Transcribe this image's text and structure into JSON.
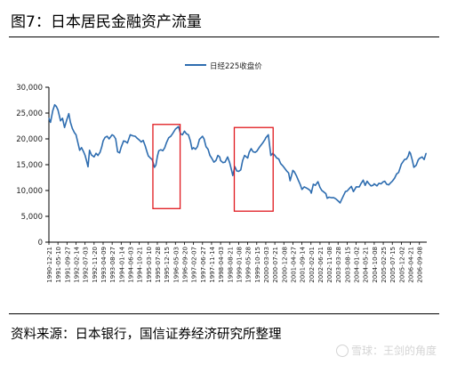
{
  "page": {
    "title": "图7：日本居民金融资产流量",
    "source": "资料来源：日本银行，国信证券经济研究所整理",
    "watermark": "雪球：王剑的角度"
  },
  "chart_data": {
    "type": "line",
    "title": "",
    "xlabel": "",
    "ylabel": "",
    "ylim": [
      0,
      30000
    ],
    "yticks": [
      0,
      5000,
      10000,
      15000,
      20000,
      25000,
      30000
    ],
    "ytick_labels": [
      "0",
      "5,000",
      "10,000",
      "15,000",
      "20,000",
      "25,000",
      "30,000"
    ],
    "xlim": [
      "1990-12-21",
      "2006-12-31"
    ],
    "xtick_labels": [
      "1990-12-21",
      "1991-05-10",
      "1991-09-27",
      "1992-02-14",
      "1992-07-03",
      "1992-11-20",
      "1993-04-09",
      "1993-08-27",
      "1994-01-14",
      "1994-06-03",
      "1994-10-21",
      "1995-03-10",
      "1995-07-28",
      "1995-12-15",
      "1996-05-03",
      "1996-09-20",
      "1997-02-07",
      "1997-06-27",
      "1997-11-14",
      "1998-04-03",
      "1998-08-21",
      "1999-01-08",
      "1999-05-28",
      "1999-10-15",
      "2000-03-03",
      "2000-07-21",
      "2000-12-08",
      "2001-04-27",
      "2001-09-14",
      "2002-02-01",
      "2002-06-21",
      "2002-11-08",
      "2003-03-28",
      "2003-08-15",
      "2004-01-02",
      "2004-05-21",
      "2004-10-08",
      "2005-02-25",
      "2005-07-15",
      "2005-12-02",
      "2006-04-21",
      "2006-09-08"
    ],
    "grid": false,
    "legend_position": "top-center",
    "series": [
      {
        "name": "日经225收盘价",
        "color": "#2e6db0",
        "points": [
          [
            "1990-12-21",
            24000
          ],
          [
            "1991-01-15",
            23200
          ],
          [
            "1991-02-20",
            25500
          ],
          [
            "1991-03-20",
            26600
          ],
          [
            "1991-04-15",
            26300
          ],
          [
            "1991-05-10",
            25600
          ],
          [
            "1991-06-20",
            23500
          ],
          [
            "1991-07-20",
            24000
          ],
          [
            "1991-08-20",
            22200
          ],
          [
            "1991-09-27",
            23800
          ],
          [
            "1991-10-25",
            24900
          ],
          [
            "1991-11-20",
            23200
          ],
          [
            "1991-12-20",
            22000
          ],
          [
            "1992-01-20",
            21200
          ],
          [
            "1992-02-14",
            20800
          ],
          [
            "1992-03-10",
            19500
          ],
          [
            "1992-04-10",
            17800
          ],
          [
            "1992-05-10",
            18300
          ],
          [
            "1992-06-10",
            17500
          ],
          [
            "1992-07-03",
            16800
          ],
          [
            "1992-07-25",
            15800
          ],
          [
            "1992-08-18",
            14600
          ],
          [
            "1992-09-10",
            17800
          ],
          [
            "1992-10-10",
            16900
          ],
          [
            "1992-11-20",
            16500
          ],
          [
            "1992-12-20",
            17200
          ],
          [
            "1993-01-20",
            16800
          ],
          [
            "1993-02-20",
            17400
          ],
          [
            "1993-03-20",
            18500
          ],
          [
            "1993-04-09",
            19600
          ],
          [
            "1993-05-10",
            20300
          ],
          [
            "1993-06-10",
            20500
          ],
          [
            "1993-07-10",
            20000
          ],
          [
            "1993-08-27",
            20800
          ],
          [
            "1993-09-20",
            20600
          ],
          [
            "1993-10-20",
            20000
          ],
          [
            "1993-11-20",
            17500
          ],
          [
            "1993-12-20",
            17300
          ],
          [
            "1994-01-14",
            18400
          ],
          [
            "1994-02-20",
            19600
          ],
          [
            "1994-03-20",
            19500
          ],
          [
            "1994-04-20",
            19200
          ],
          [
            "1994-06-03",
            20800
          ],
          [
            "1994-07-10",
            20600
          ],
          [
            "1994-08-20",
            20500
          ],
          [
            "1994-09-20",
            20100
          ],
          [
            "1994-10-21",
            19800
          ],
          [
            "1994-11-20",
            19400
          ],
          [
            "1994-12-20",
            19700
          ],
          [
            "1995-01-20",
            18700
          ],
          [
            "1995-02-20",
            17400
          ],
          [
            "1995-03-10",
            16700
          ],
          [
            "1995-04-10",
            16300
          ],
          [
            "1995-05-10",
            16000
          ],
          [
            "1995-06-13",
            14500
          ],
          [
            "1995-07-05",
            14900
          ],
          [
            "1995-07-28",
            16600
          ],
          [
            "1995-08-20",
            17700
          ],
          [
            "1995-09-20",
            17900
          ],
          [
            "1995-10-20",
            17700
          ],
          [
            "1995-11-20",
            18300
          ],
          [
            "1995-12-15",
            19200
          ],
          [
            "1996-01-20",
            20200
          ],
          [
            "1996-02-20",
            20500
          ],
          [
            "1996-03-20",
            21000
          ],
          [
            "1996-05-03",
            21900
          ],
          [
            "1996-06-20",
            22400
          ],
          [
            "1996-07-20",
            21000
          ],
          [
            "1996-08-20",
            20800
          ],
          [
            "1996-09-20",
            21500
          ],
          [
            "1996-10-20",
            21000
          ],
          [
            "1996-11-20",
            20800
          ],
          [
            "1996-12-20",
            19600
          ],
          [
            "1997-01-15",
            18000
          ],
          [
            "1997-02-07",
            18300
          ],
          [
            "1997-03-10",
            18000
          ],
          [
            "1997-04-10",
            18500
          ],
          [
            "1997-05-10",
            19900
          ],
          [
            "1997-06-27",
            20500
          ],
          [
            "1997-07-20",
            20000
          ],
          [
            "1997-08-20",
            18500
          ],
          [
            "1997-09-20",
            18000
          ],
          [
            "1997-10-20",
            16800
          ],
          [
            "1997-11-14",
            16300
          ],
          [
            "1997-12-20",
            15500
          ],
          [
            "1998-01-20",
            15800
          ],
          [
            "1998-02-20",
            16800
          ],
          [
            "1998-03-20",
            16500
          ],
          [
            "1998-04-03",
            15800
          ],
          [
            "1998-05-10",
            15400
          ],
          [
            "1998-06-10",
            15500
          ],
          [
            "1998-07-20",
            16500
          ],
          [
            "1998-08-21",
            15400
          ],
          [
            "1998-09-20",
            13900
          ],
          [
            "1998-10-09",
            12900
          ],
          [
            "1998-11-10",
            14600
          ],
          [
            "1998-12-10",
            13800
          ],
          [
            "1999-01-08",
            13700
          ],
          [
            "1999-02-10",
            14000
          ],
          [
            "1999-03-10",
            15800
          ],
          [
            "1999-04-10",
            16800
          ],
          [
            "1999-05-28",
            16300
          ],
          [
            "1999-06-20",
            17400
          ],
          [
            "1999-07-20",
            18100
          ],
          [
            "1999-08-20",
            17500
          ],
          [
            "1999-09-20",
            17400
          ],
          [
            "1999-10-15",
            17600
          ],
          [
            "1999-11-20",
            18300
          ],
          [
            "1999-12-20",
            18800
          ],
          [
            "2000-01-20",
            19300
          ],
          [
            "2000-02-20",
            19900
          ],
          [
            "2000-03-03",
            20200
          ],
          [
            "2000-04-12",
            20800
          ],
          [
            "2000-05-20",
            16800
          ],
          [
            "2000-06-20",
            17200
          ],
          [
            "2000-07-21",
            16800
          ],
          [
            "2000-08-20",
            16300
          ],
          [
            "2000-09-20",
            16100
          ],
          [
            "2000-10-20",
            15200
          ],
          [
            "2000-11-20",
            14800
          ],
          [
            "2000-12-08",
            14500
          ],
          [
            "2001-01-20",
            13800
          ],
          [
            "2001-02-20",
            13400
          ],
          [
            "2001-03-15",
            11900
          ],
          [
            "2001-04-27",
            13900
          ],
          [
            "2001-05-20",
            13600
          ],
          [
            "2001-06-20",
            12900
          ],
          [
            "2001-07-20",
            12000
          ],
          [
            "2001-08-20",
            11100
          ],
          [
            "2001-09-14",
            10200
          ],
          [
            "2001-10-20",
            10700
          ],
          [
            "2001-11-20",
            10500
          ],
          [
            "2001-12-20",
            10300
          ],
          [
            "2002-01-20",
            10000
          ],
          [
            "2002-02-06",
            9500
          ],
          [
            "2002-03-10",
            11200
          ],
          [
            "2002-04-10",
            11000
          ],
          [
            "2002-05-20",
            11700
          ],
          [
            "2002-06-21",
            10600
          ],
          [
            "2002-07-20",
            10000
          ],
          [
            "2002-08-20",
            9700
          ],
          [
            "2002-09-20",
            9400
          ],
          [
            "2002-10-10",
            8500
          ],
          [
            "2002-11-08",
            8700
          ],
          [
            "2002-12-20",
            8600
          ],
          [
            "2003-01-20",
            8600
          ],
          [
            "2003-02-20",
            8400
          ],
          [
            "2003-03-28",
            8000
          ],
          [
            "2003-04-28",
            7600
          ],
          [
            "2003-05-20",
            8200
          ],
          [
            "2003-06-20",
            9000
          ],
          [
            "2003-07-20",
            9800
          ],
          [
            "2003-08-15",
            9900
          ],
          [
            "2003-09-20",
            10400
          ],
          [
            "2003-10-20",
            10800
          ],
          [
            "2003-11-20",
            9800
          ],
          [
            "2003-12-20",
            10400
          ],
          [
            "2004-01-02",
            10700
          ],
          [
            "2004-02-20",
            10700
          ],
          [
            "2004-03-20",
            11400
          ],
          [
            "2004-04-20",
            12000
          ],
          [
            "2004-05-21",
            11000
          ],
          [
            "2004-06-20",
            11800
          ],
          [
            "2004-07-20",
            11300
          ],
          [
            "2004-08-20",
            10900
          ],
          [
            "2004-09-20",
            11000
          ],
          [
            "2004-10-08",
            11300
          ],
          [
            "2004-11-20",
            10900
          ],
          [
            "2004-12-20",
            11400
          ],
          [
            "2005-01-20",
            11300
          ],
          [
            "2005-02-25",
            11700
          ],
          [
            "2005-03-20",
            11800
          ],
          [
            "2005-04-20",
            11200
          ],
          [
            "2005-05-20",
            11100
          ],
          [
            "2005-06-20",
            11500
          ],
          [
            "2005-07-15",
            11800
          ],
          [
            "2005-08-20",
            12400
          ],
          [
            "2005-09-20",
            13200
          ],
          [
            "2005-10-20",
            13500
          ],
          [
            "2005-11-20",
            14600
          ],
          [
            "2005-12-02",
            15100
          ],
          [
            "2006-01-20",
            16000
          ],
          [
            "2006-02-20",
            16100
          ],
          [
            "2006-03-20",
            16700
          ],
          [
            "2006-04-07",
            17500
          ],
          [
            "2006-04-21",
            17200
          ],
          [
            "2006-05-20",
            15900
          ],
          [
            "2006-06-14",
            14500
          ],
          [
            "2006-07-20",
            14900
          ],
          [
            "2006-08-20",
            15900
          ],
          [
            "2006-09-08",
            16200
          ],
          [
            "2006-10-20",
            16500
          ],
          [
            "2006-11-20",
            16000
          ],
          [
            "2006-12-20",
            17200
          ]
        ]
      }
    ],
    "annotations": [
      {
        "type": "box",
        "color": "#e0191e",
        "x": [
          "1995-05-20",
          "1996-07-15"
        ],
        "y": [
          6500,
          22800
        ]
      },
      {
        "type": "box",
        "color": "#e0191e",
        "x": [
          "1998-11-01",
          "2000-06-25"
        ],
        "y": [
          6000,
          22200
        ]
      }
    ]
  }
}
